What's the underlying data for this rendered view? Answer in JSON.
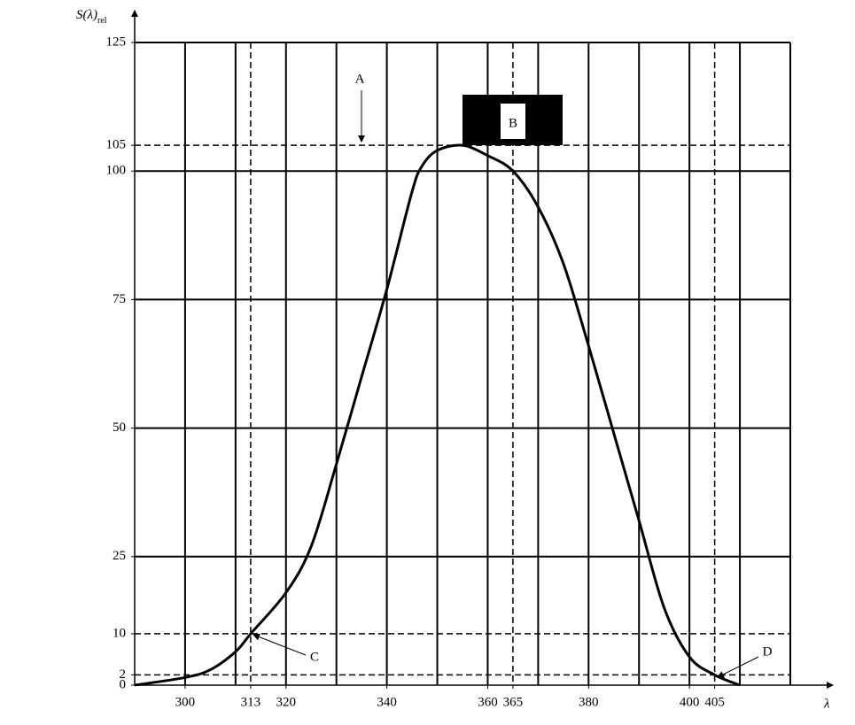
{
  "chart_data": {
    "type": "line",
    "ylabel": "S(λ)",
    "ylabel_sub": "rel",
    "xlabel": "λ",
    "x": [
      290,
      300,
      305,
      310,
      313,
      320,
      325,
      330,
      335,
      340,
      345,
      347,
      350,
      355,
      360,
      365,
      370,
      375,
      380,
      385,
      390,
      395,
      400,
      405,
      410
    ],
    "series": [
      {
        "name": "S",
        "color": "#000000",
        "values": [
          0,
          1.5,
          3,
          6.5,
          10,
          18,
          27,
          43,
          60,
          77,
          96,
          101,
          104,
          105,
          103,
          100,
          93,
          82,
          66,
          49,
          32,
          15,
          5.5,
          2,
          0
        ]
      }
    ],
    "xlim": [
      290,
      420
    ],
    "ylim": [
      0,
      125
    ],
    "xticks": [
      300,
      313,
      320,
      340,
      360,
      365,
      380,
      400,
      405
    ],
    "yticks": [
      0,
      2,
      10,
      25,
      50,
      75,
      100,
      105,
      125
    ],
    "grid_x": [
      300,
      310,
      320,
      330,
      340,
      350,
      360,
      370,
      380,
      390,
      400,
      410,
      420
    ],
    "grid_y": [
      25,
      50,
      75,
      100,
      125
    ],
    "dashed_x": [
      313,
      365,
      405
    ],
    "dashed_y": [
      2,
      10,
      105
    ],
    "annotations": [
      "A",
      "B",
      "C",
      "D"
    ]
  }
}
